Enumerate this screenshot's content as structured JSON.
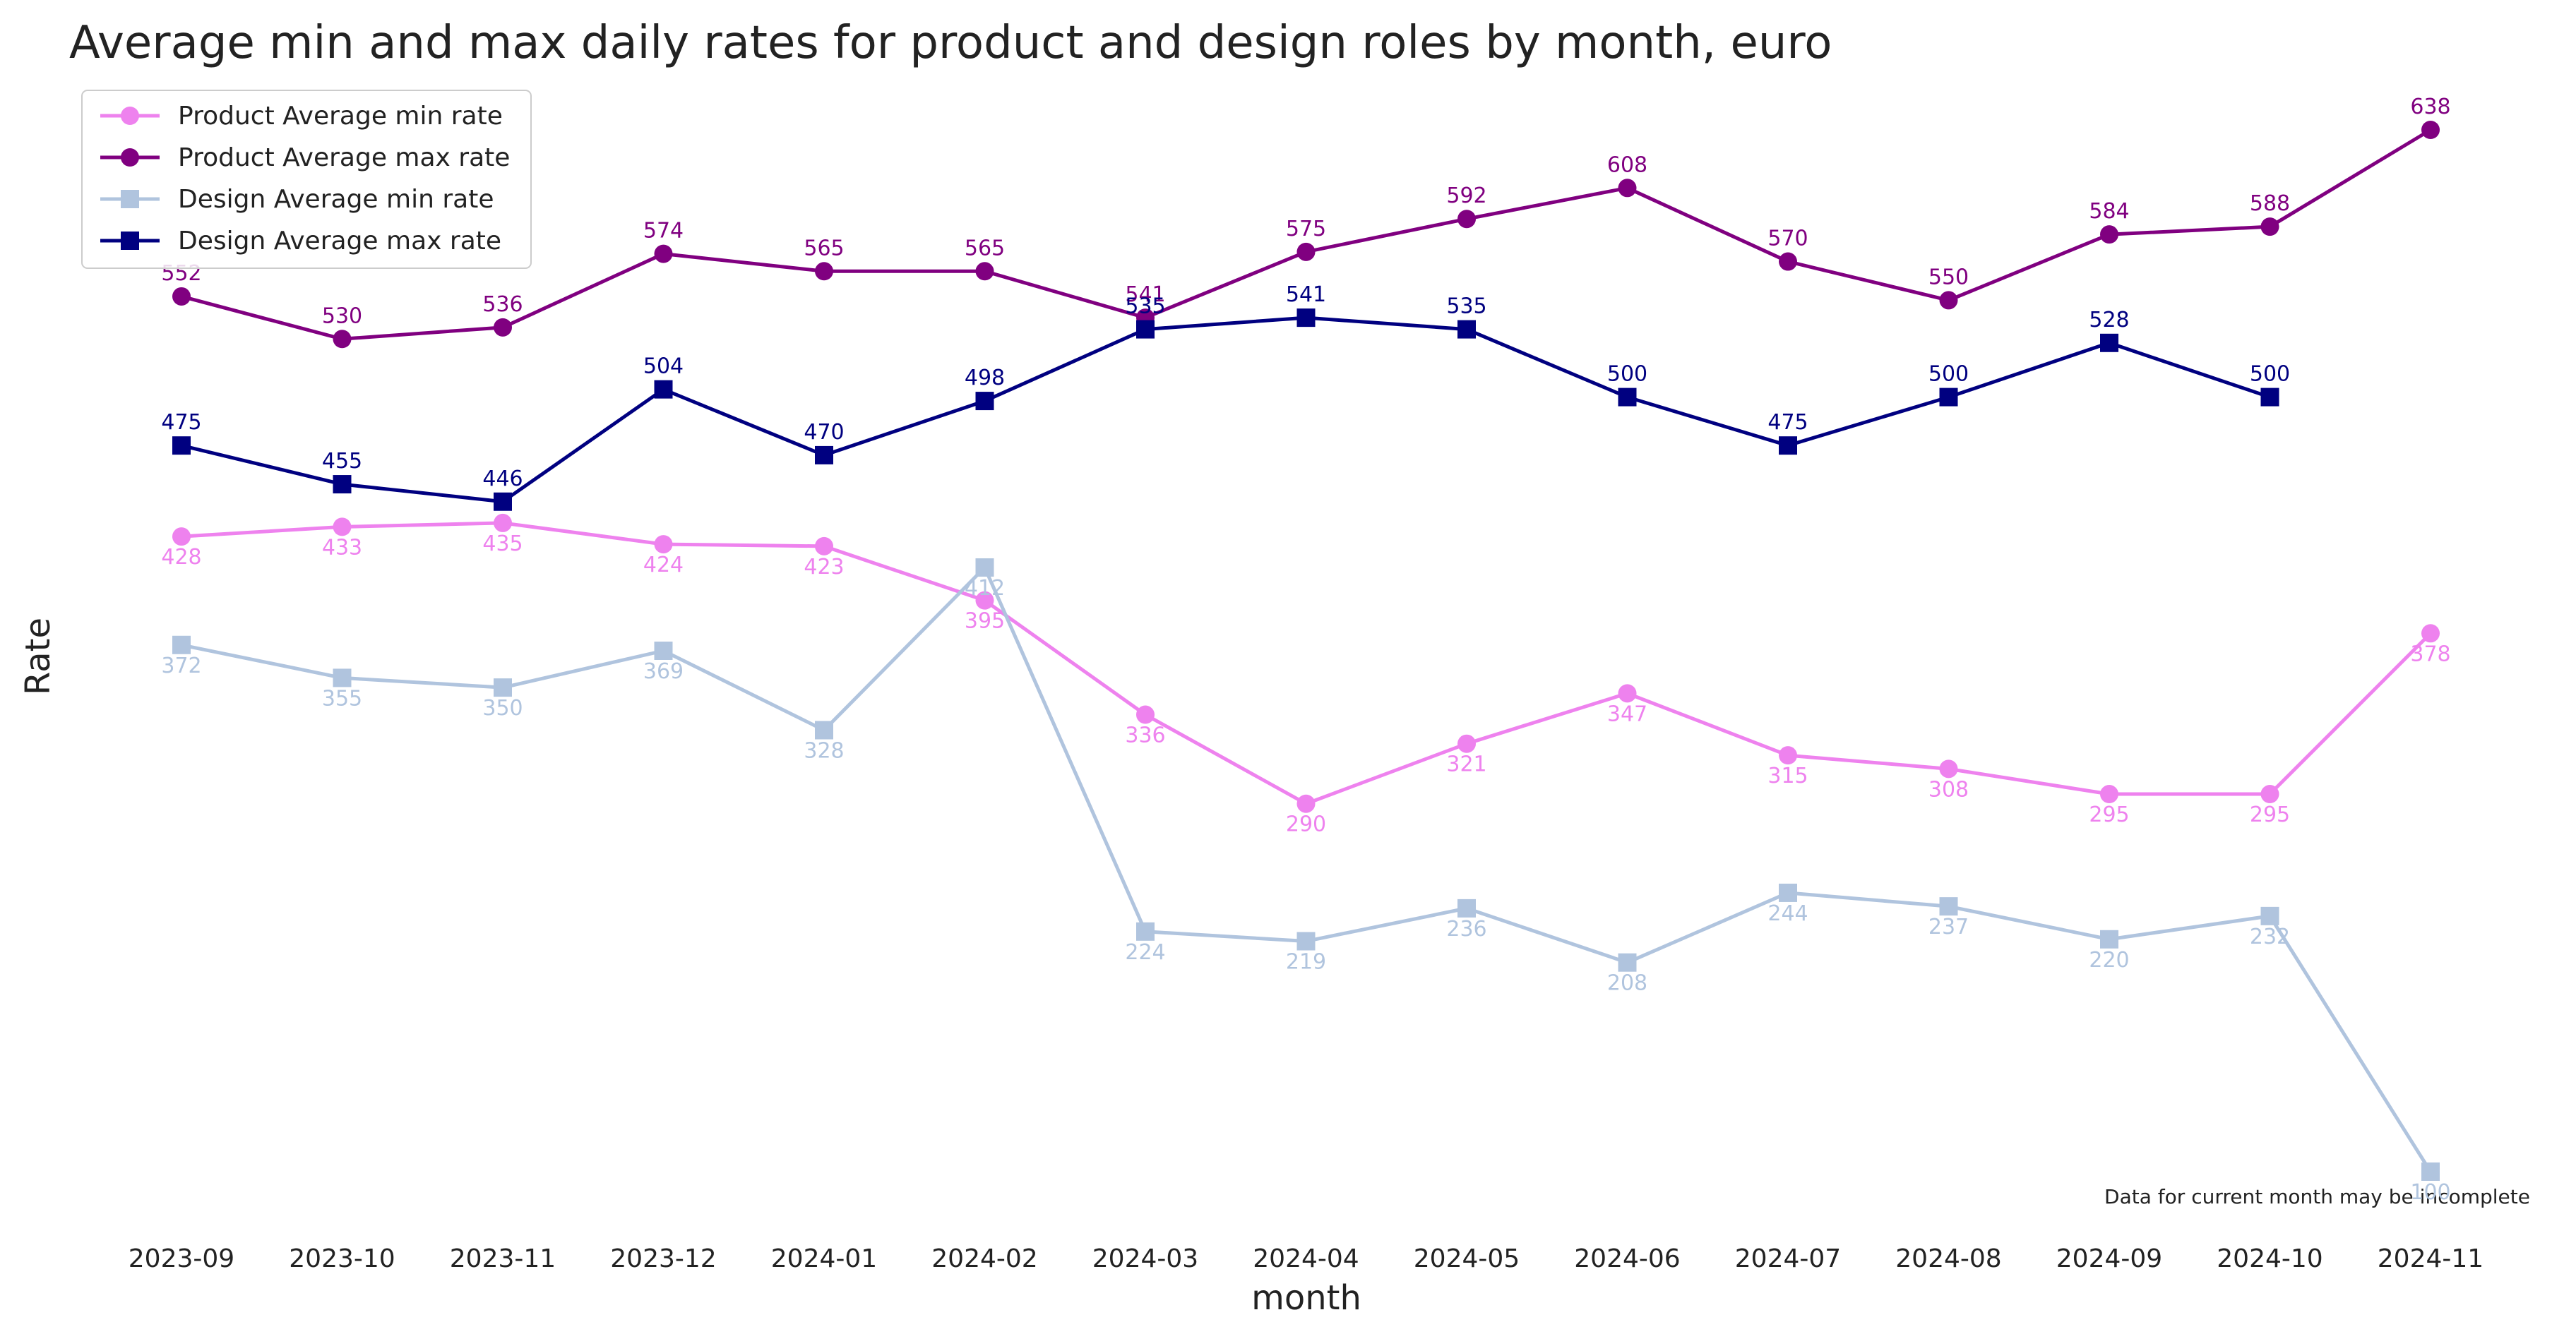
{
  "chart_data": {
    "type": "line",
    "title": "Average min and max daily rates for product and design roles by month, euro",
    "xlabel": "month",
    "ylabel": "Rate",
    "categories": [
      "2023-09",
      "2023-10",
      "2023-11",
      "2023-12",
      "2024-01",
      "2024-02",
      "2024-03",
      "2024-04",
      "2024-05",
      "2024-06",
      "2024-07",
      "2024-08",
      "2024-09",
      "2024-10",
      "2024-11"
    ],
    "ylim": [
      90,
      650
    ],
    "grid": false,
    "legend_position": "top-left",
    "annotation": "Data for current month may be incomplete",
    "series": [
      {
        "name": "Product Average min rate",
        "marker": "circle",
        "color": "#ee82ee",
        "label_position": "below",
        "values": [
          428,
          433,
          435,
          424,
          423,
          395,
          336,
          290,
          321,
          347,
          315,
          308,
          295,
          295,
          378
        ]
      },
      {
        "name": "Product Average max rate",
        "marker": "circle",
        "color": "#800080",
        "label_position": "above",
        "values": [
          552,
          530,
          536,
          574,
          565,
          565,
          541,
          575,
          592,
          608,
          570,
          550,
          584,
          588,
          638
        ]
      },
      {
        "name": "Design Average min rate",
        "marker": "square",
        "color": "#b0c4de",
        "label_position": "below",
        "values": [
          372,
          355,
          350,
          369,
          328,
          412,
          224,
          219,
          236,
          208,
          244,
          237,
          220,
          232,
          100
        ]
      },
      {
        "name": "Design Average max rate",
        "marker": "square",
        "color": "#000080",
        "label_position": "above",
        "values": [
          475,
          455,
          446,
          504,
          470,
          498,
          535,
          541,
          535,
          500,
          475,
          500,
          528,
          500,
          null
        ]
      }
    ]
  }
}
